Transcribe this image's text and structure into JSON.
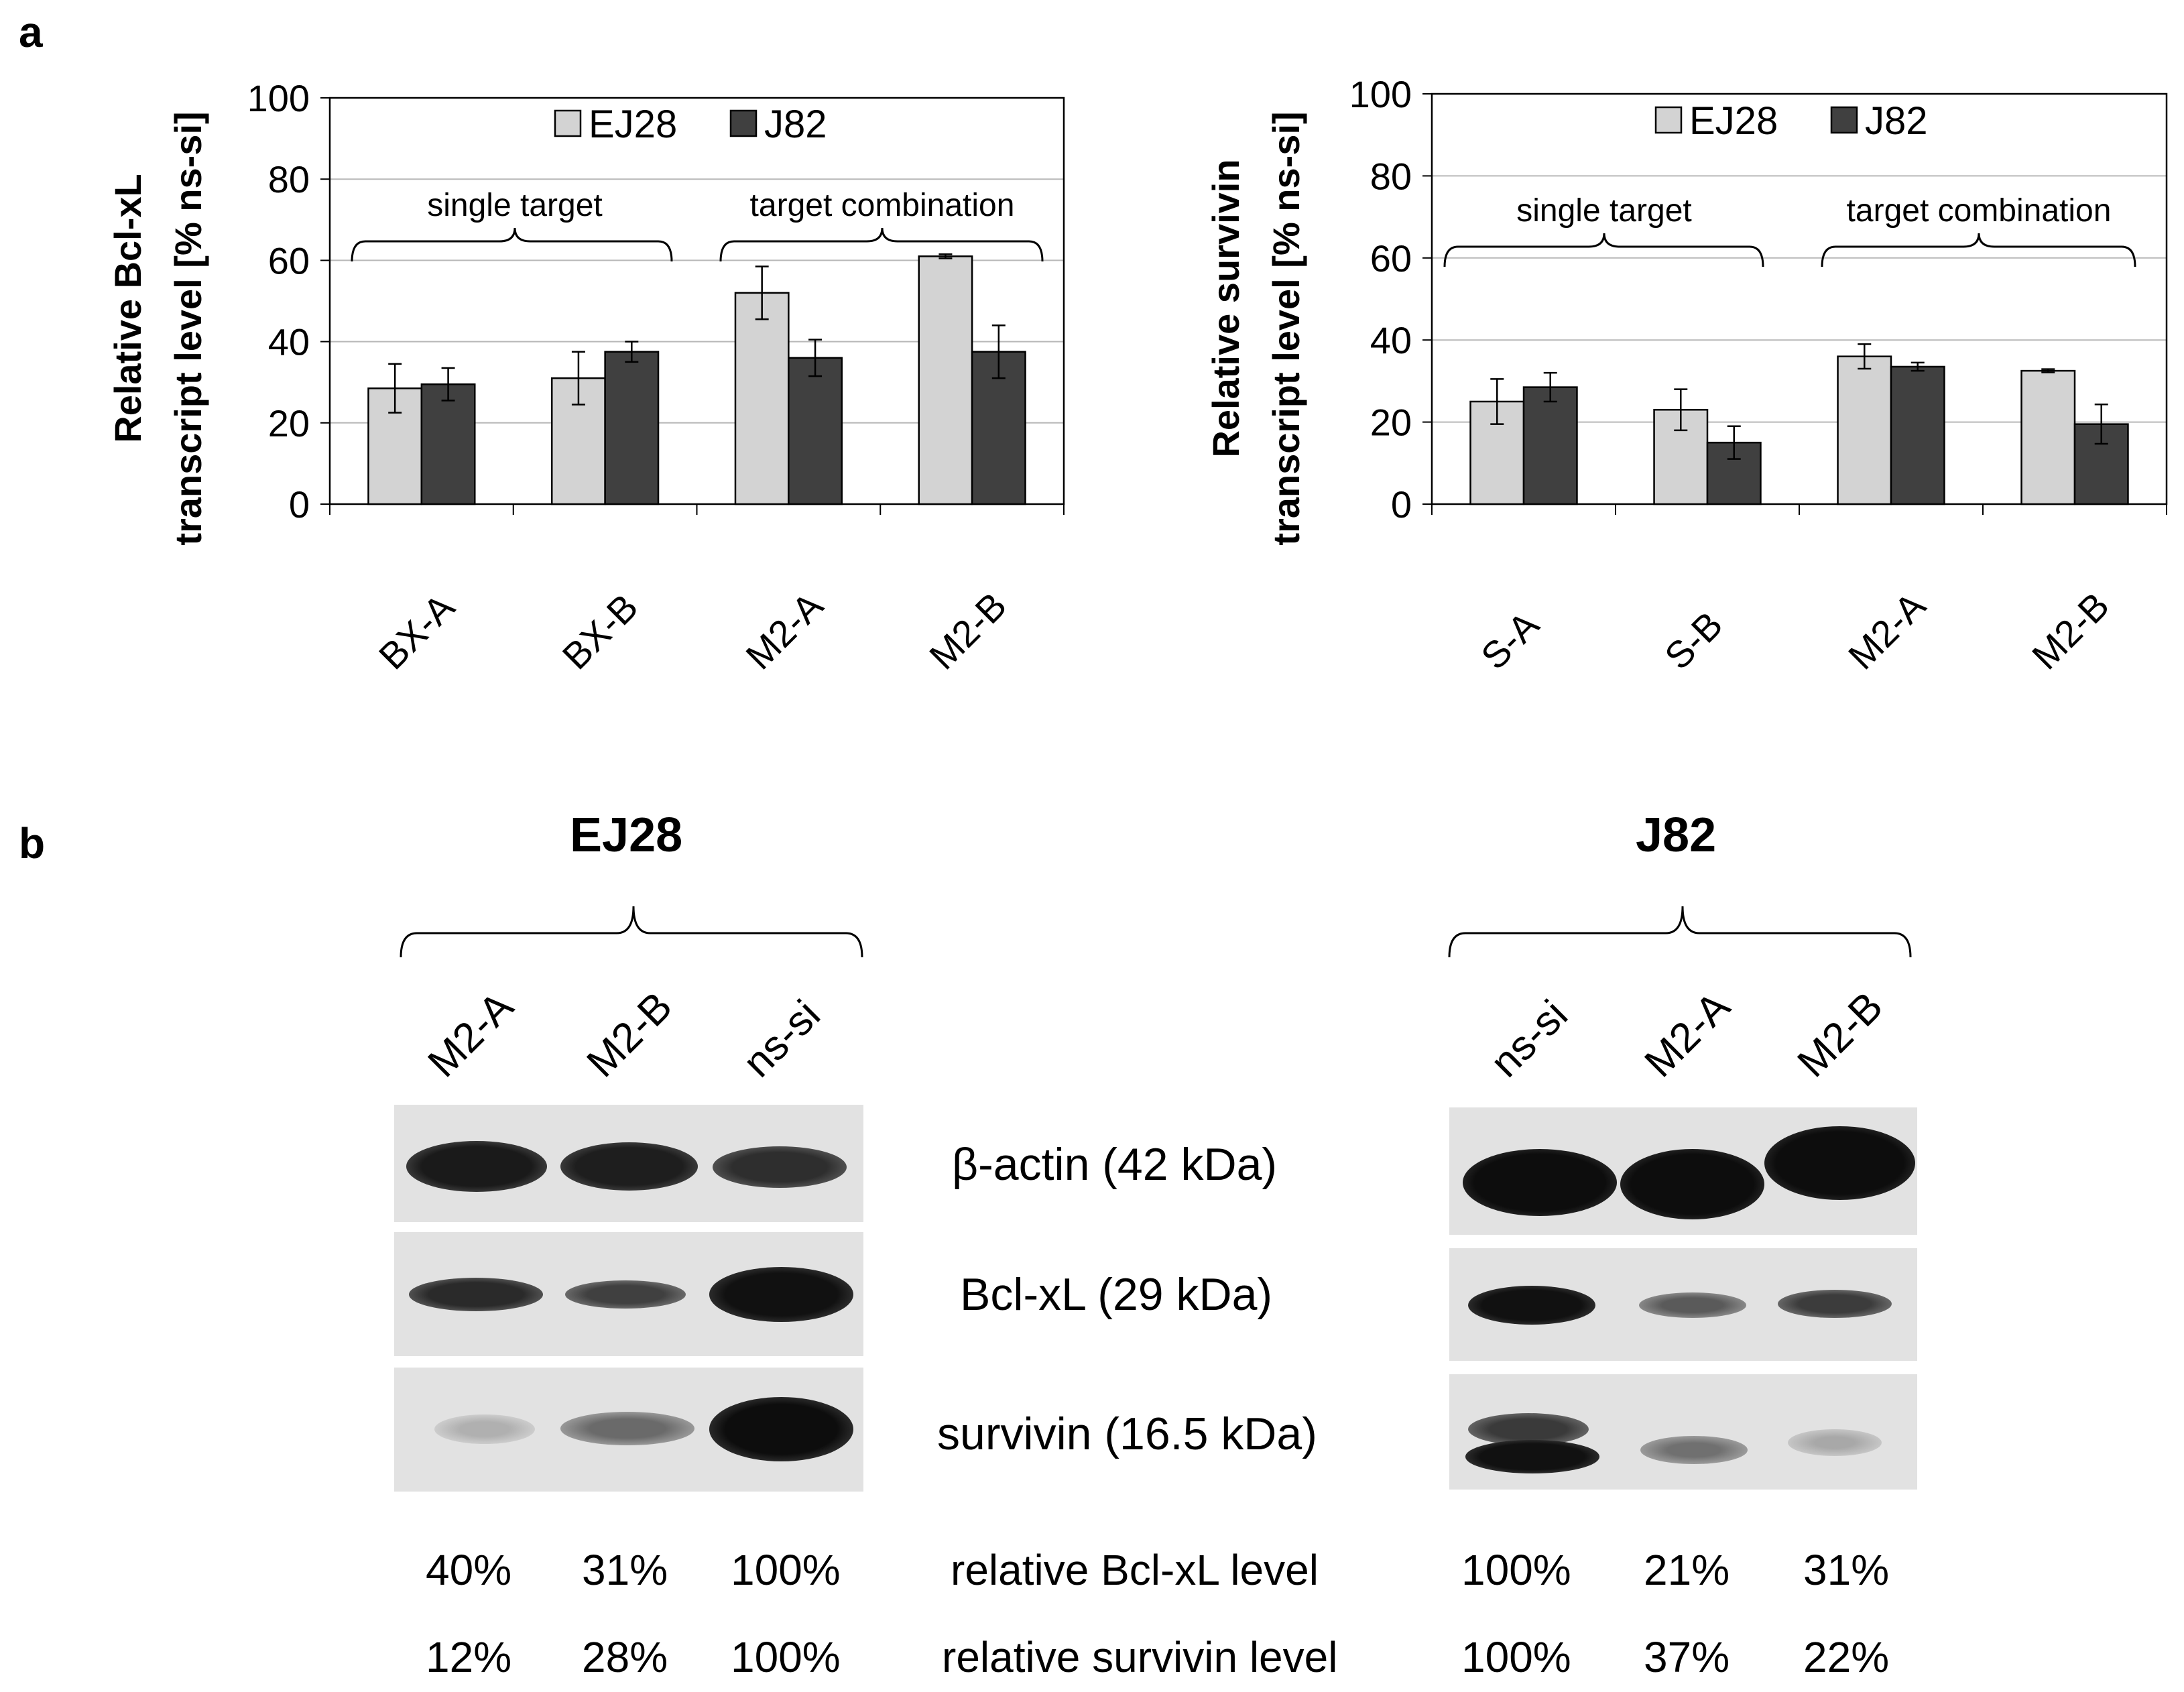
{
  "panel_a_label": "a",
  "panel_b_label": "b",
  "chart_data": [
    {
      "type": "bar",
      "ylabel_line1": "Relative Bcl-xL",
      "ylabel_line2": "transcript level [% ns-si]",
      "xlabel": "",
      "ylim": [
        0,
        100
      ],
      "yticks": [
        "0",
        "20",
        "40",
        "60",
        "80",
        "100"
      ],
      "categories": [
        "BX-A",
        "BX-B",
        "M2-A",
        "M2-B"
      ],
      "series": [
        {
          "name": "EJ28",
          "color": "#d3d3d3",
          "values": [
            28.5,
            31,
            52,
            61
          ],
          "errors": [
            6,
            6.5,
            6.5,
            0.5
          ]
        },
        {
          "name": "J82",
          "color": "#404040",
          "values": [
            29.5,
            37.5,
            36,
            37.5
          ],
          "errors": [
            4,
            2.5,
            4.5,
            6.5
          ]
        }
      ],
      "brace_labels": [
        "single target",
        "target combination"
      ],
      "legend": "top-center"
    },
    {
      "type": "bar",
      "ylabel_line1": "Relative survivin",
      "ylabel_line2": "transcript level [% ns-si]",
      "xlabel": "",
      "ylim": [
        0,
        100
      ],
      "yticks": [
        "0",
        "20",
        "40",
        "60",
        "80",
        "100"
      ],
      "categories": [
        "S-A",
        "S-B",
        "M2-A",
        "M2-B"
      ],
      "series": [
        {
          "name": "EJ28",
          "color": "#d3d3d3",
          "values": [
            25,
            23,
            36,
            32.5
          ],
          "errors": [
            5.5,
            5,
            3,
            0.4
          ]
        },
        {
          "name": "J82",
          "color": "#404040",
          "values": [
            28.5,
            15,
            33.5,
            19.5
          ],
          "errors": [
            3.5,
            4,
            1,
            4.8
          ]
        }
      ],
      "brace_labels": [
        "single target",
        "target combination"
      ],
      "legend": "top-center"
    }
  ],
  "western": {
    "left_title": "EJ28",
    "right_title": "J82",
    "left_lanes": [
      "M2-A",
      "M2-B",
      "ns-si"
    ],
    "right_lanes": [
      "ns-si",
      "M2-A",
      "M2-B"
    ],
    "rows": [
      "β-actin (42 kDa)",
      "Bcl-xL (29 kDa)",
      "survivin (16.5 kDa)"
    ],
    "bcl_label": "relative Bcl-xL level",
    "surv_label": "relative survivin level",
    "left_bcl": [
      "40%",
      "31%",
      "100%"
    ],
    "left_surv": [
      "12%",
      "28%",
      "100%"
    ],
    "right_bcl": [
      "100%",
      "21%",
      "31%"
    ],
    "right_surv": [
      "100%",
      "37%",
      "22%"
    ]
  }
}
